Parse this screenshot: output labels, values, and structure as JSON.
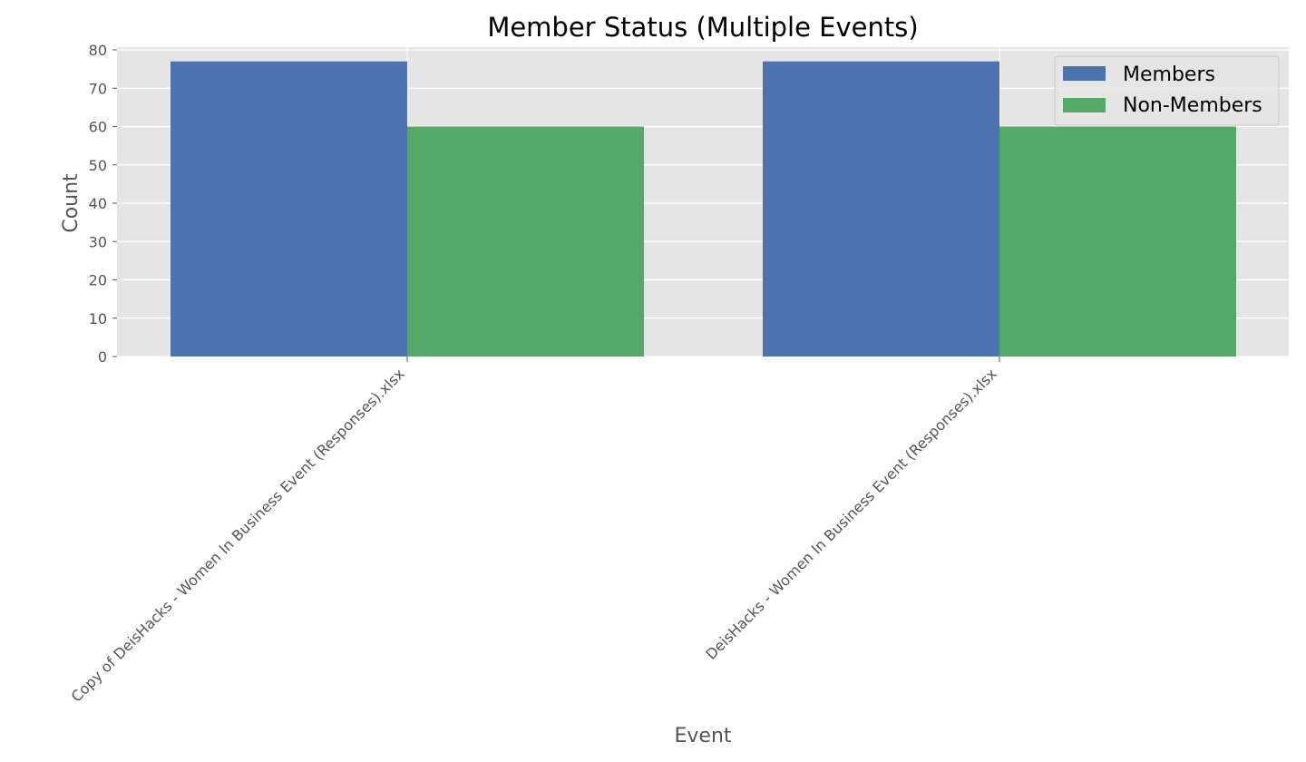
{
  "chart_data": {
    "type": "bar",
    "title": "Member Status (Multiple Events)",
    "xlabel": "Event",
    "ylabel": "Count",
    "categories": [
      "Copy of DeisHacks - Women In Business Event (Responses).xlsx",
      "DeisHacks - Women In Business Event (Responses).xlsx"
    ],
    "series": [
      {
        "name": "Members",
        "values": [
          77,
          77
        ],
        "color": "#4c72b0"
      },
      {
        "name": "Non-Members",
        "values": [
          60,
          60
        ],
        "color": "#55a868"
      }
    ],
    "ylim": [
      0,
      80
    ],
    "yticks": [
      0,
      10,
      20,
      30,
      40,
      50,
      60,
      70,
      80
    ],
    "grid": true,
    "legend_position": "top-right",
    "colors": {
      "plot_background": "#e5e5e5",
      "grid": "#ffffff"
    }
  }
}
